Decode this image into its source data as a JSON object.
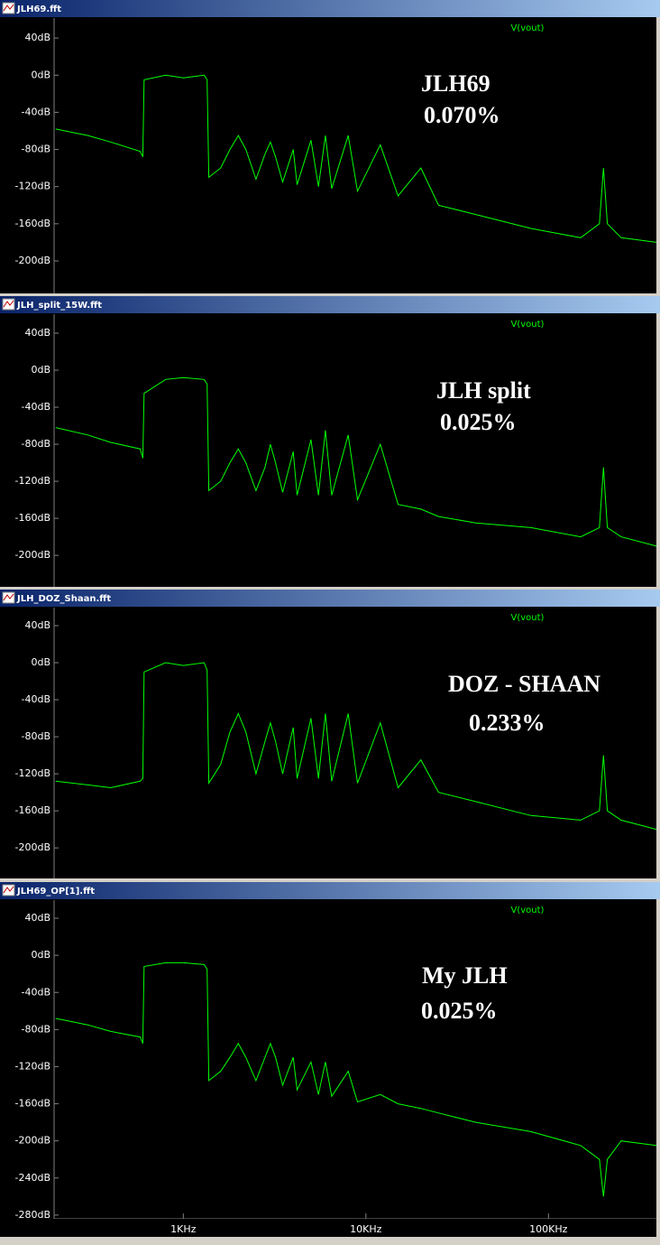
{
  "chart_data": [
    {
      "type": "line",
      "title": "JLH69.fft",
      "annotations": [
        "JLH69",
        "0.070%"
      ],
      "log_x": true,
      "x": [
        200,
        300,
        400,
        580,
        600,
        610,
        800,
        1000,
        1300,
        1350,
        1380,
        1600,
        1800,
        2000,
        2200,
        2500,
        2800,
        3000,
        3200,
        3500,
        4000,
        4200,
        5000,
        5500,
        6000,
        6500,
        8000,
        9000,
        12000,
        15000,
        20000,
        25000,
        40000,
        80000,
        150000,
        190000,
        200000,
        210000,
        250000,
        390000
      ],
      "series": [
        {
          "name": "V(vout)",
          "color": "#00ff00",
          "values": [
            -58,
            -65,
            -72,
            -82,
            -88,
            -5,
            0,
            -3,
            0,
            -5,
            -110,
            -100,
            -80,
            -65,
            -80,
            -112,
            -85,
            -72,
            -88,
            -115,
            -80,
            -118,
            -70,
            -120,
            -65,
            -122,
            -65,
            -125,
            -75,
            -130,
            -100,
            -140,
            -150,
            -165,
            -175,
            -160,
            -100,
            -160,
            -175,
            -180
          ]
        }
      ],
      "xlim": [
        196,
        390000
      ],
      "ylim": [
        -235,
        61.5
      ],
      "yticks": [
        {
          "value": 40,
          "label": "40dB"
        },
        {
          "value": 0,
          "label": "0dB"
        },
        {
          "value": -40,
          "label": "-40dB"
        },
        {
          "value": -80,
          "label": "-80dB"
        },
        {
          "value": -120,
          "label": "-120dB"
        },
        {
          "value": -160,
          "label": "-160dB"
        },
        {
          "value": -200,
          "label": "-200dB"
        }
      ]
    },
    {
      "type": "line",
      "title": "JLH_split_15W.fft",
      "annotations": [
        "JLH split",
        "0.025%"
      ],
      "log_x": true,
      "x": [
        200,
        300,
        400,
        580,
        600,
        610,
        800,
        1000,
        1300,
        1350,
        1380,
        1600,
        1800,
        2000,
        2200,
        2500,
        2800,
        3000,
        3200,
        3500,
        4000,
        4200,
        5000,
        5500,
        6000,
        6500,
        8000,
        9000,
        12000,
        15000,
        20000,
        25000,
        40000,
        80000,
        150000,
        190000,
        200000,
        210000,
        250000,
        390000
      ],
      "series": [
        {
          "name": "V(vout)",
          "color": "#00ff00",
          "values": [
            -62,
            -70,
            -78,
            -85,
            -95,
            -25,
            -10,
            -8,
            -10,
            -15,
            -130,
            -120,
            -100,
            -85,
            -100,
            -130,
            -105,
            -80,
            -100,
            -132,
            -88,
            -135,
            -75,
            -135,
            -65,
            -135,
            -70,
            -140,
            -80,
            -145,
            -150,
            -158,
            -165,
            -170,
            -180,
            -170,
            -105,
            -170,
            -180,
            -190
          ]
        }
      ],
      "xlim": [
        196,
        390000
      ],
      "ylim": [
        -234,
        60.5
      ],
      "yticks": [
        {
          "value": 40,
          "label": "40dB"
        },
        {
          "value": 0,
          "label": "0dB"
        },
        {
          "value": -40,
          "label": "-40dB"
        },
        {
          "value": -80,
          "label": "-80dB"
        },
        {
          "value": -120,
          "label": "-120dB"
        },
        {
          "value": -160,
          "label": "-160dB"
        },
        {
          "value": -200,
          "label": "-200dB"
        }
      ]
    },
    {
      "type": "line",
      "title": "JLH_DOZ_Shaan.fft",
      "annotations": [
        "DOZ - SHAAN",
        "0.233%"
      ],
      "log_x": true,
      "x": [
        200,
        300,
        400,
        580,
        600,
        610,
        800,
        1000,
        1300,
        1350,
        1380,
        1600,
        1800,
        2000,
        2200,
        2500,
        2800,
        3000,
        3200,
        3500,
        4000,
        4200,
        5000,
        5500,
        6000,
        6500,
        8000,
        9000,
        12000,
        15000,
        20000,
        25000,
        40000,
        80000,
        150000,
        190000,
        200000,
        210000,
        250000,
        390000
      ],
      "series": [
        {
          "name": "V(vout)",
          "color": "#00ff00",
          "values": [
            -128,
            -132,
            -135,
            -128,
            -125,
            -10,
            0,
            -3,
            0,
            -8,
            -130,
            -110,
            -75,
            -55,
            -75,
            -120,
            -85,
            -65,
            -85,
            -120,
            -70,
            -125,
            -60,
            -125,
            -55,
            -128,
            -55,
            -130,
            -65,
            -135,
            -105,
            -140,
            -150,
            -165,
            -170,
            -160,
            -100,
            -160,
            -170,
            -180
          ]
        }
      ],
      "xlim": [
        196,
        390000
      ],
      "ylim": [
        -233,
        59.5
      ],
      "yticks": [
        {
          "value": 40,
          "label": "40dB"
        },
        {
          "value": 0,
          "label": "0dB"
        },
        {
          "value": -40,
          "label": "-40dB"
        },
        {
          "value": -80,
          "label": "-80dB"
        },
        {
          "value": -120,
          "label": "-120dB"
        },
        {
          "value": -160,
          "label": "-160dB"
        },
        {
          "value": -200,
          "label": "-200dB"
        }
      ]
    },
    {
      "type": "line",
      "title": "JLH69_OP[1].fft",
      "annotations": [
        "My JLH",
        "0.025%"
      ],
      "log_x": true,
      "x": [
        200,
        300,
        400,
        580,
        600,
        610,
        800,
        1000,
        1300,
        1350,
        1380,
        1600,
        1800,
        2000,
        2200,
        2500,
        2800,
        3000,
        3200,
        3500,
        4000,
        4200,
        5000,
        5500,
        6000,
        6500,
        8000,
        9000,
        12000,
        15000,
        20000,
        25000,
        40000,
        80000,
        150000,
        190000,
        200000,
        210000,
        250000,
        390000
      ],
      "series": [
        {
          "name": "V(vout)",
          "color": "#00ff00",
          "values": [
            -68,
            -75,
            -82,
            -88,
            -95,
            -12,
            -8,
            -8,
            -10,
            -15,
            -135,
            -125,
            -110,
            -95,
            -110,
            -135,
            -110,
            -95,
            -110,
            -140,
            -110,
            -145,
            -115,
            -150,
            -115,
            -152,
            -125,
            -158,
            -150,
            -160,
            -165,
            -170,
            -180,
            -190,
            -205,
            -220,
            -260,
            -220,
            -200,
            -205
          ]
        }
      ],
      "xlim": [
        196,
        390000
      ],
      "ylim": [
        -284,
        59.5
      ],
      "xticks": [
        {
          "value": 1000,
          "label": "1KHz"
        },
        {
          "value": 10000,
          "label": "10KHz"
        },
        {
          "value": 100000,
          "label": "100KHz"
        }
      ],
      "yticks": [
        {
          "value": 40,
          "label": "40dB"
        },
        {
          "value": 0,
          "label": "0dB"
        },
        {
          "value": -40,
          "label": "-40dB"
        },
        {
          "value": -80,
          "label": "-80dB"
        },
        {
          "value": -120,
          "label": "-120dB"
        },
        {
          "value": -160,
          "label": "-160dB"
        },
        {
          "value": -200,
          "label": "-200dB"
        },
        {
          "value": -240,
          "label": "-240dB"
        },
        {
          "value": -280,
          "label": "-280dB"
        }
      ]
    }
  ]
}
